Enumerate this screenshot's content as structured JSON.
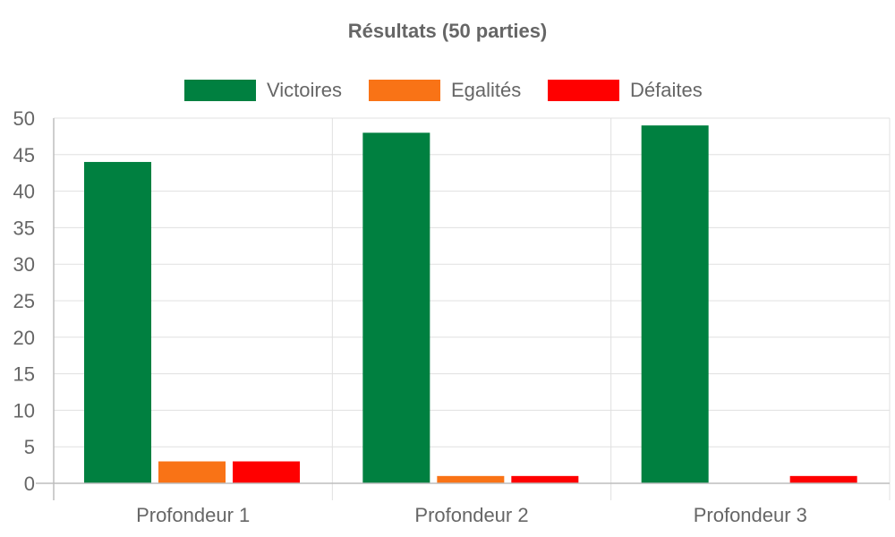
{
  "chart_data": {
    "type": "bar",
    "title": "Résultats (50 parties)",
    "categories": [
      "Profondeur 1",
      "Profondeur 2",
      "Profondeur 3"
    ],
    "series": [
      {
        "name": "Victoires",
        "color": "#008040",
        "values": [
          44,
          48,
          49
        ]
      },
      {
        "name": "Egalités",
        "color": "#f97316",
        "values": [
          3,
          1,
          0
        ]
      },
      {
        "name": "Défaites",
        "color": "#ff0000",
        "values": [
          3,
          1,
          1
        ]
      }
    ],
    "ylim": [
      0,
      50
    ],
    "yticks": [
      0,
      5,
      10,
      15,
      20,
      25,
      30,
      35,
      40,
      45,
      50
    ],
    "grid": true,
    "legend": "top-center"
  }
}
